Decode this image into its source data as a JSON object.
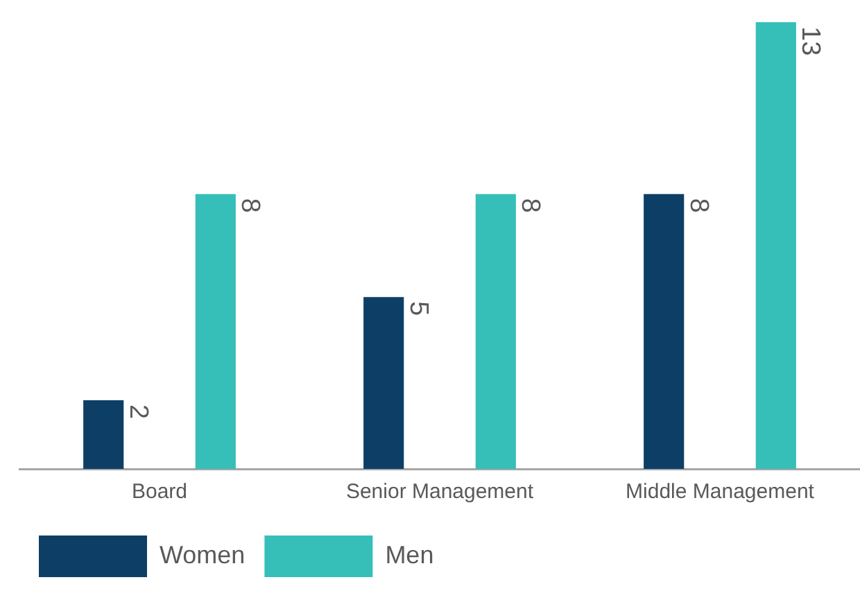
{
  "chart_data": {
    "type": "bar",
    "categories": [
      "Board",
      "Senior Management",
      "Middle Management"
    ],
    "series": [
      {
        "name": "Women",
        "color": "#0d3f66",
        "values": [
          2,
          5,
          8
        ]
      },
      {
        "name": "Men",
        "color": "#36bfb8",
        "values": [
          8,
          8,
          13
        ]
      }
    ],
    "ylim": [
      0,
      13
    ],
    "tick_labels": "x",
    "data_labels": true,
    "legend": "bottom left"
  }
}
